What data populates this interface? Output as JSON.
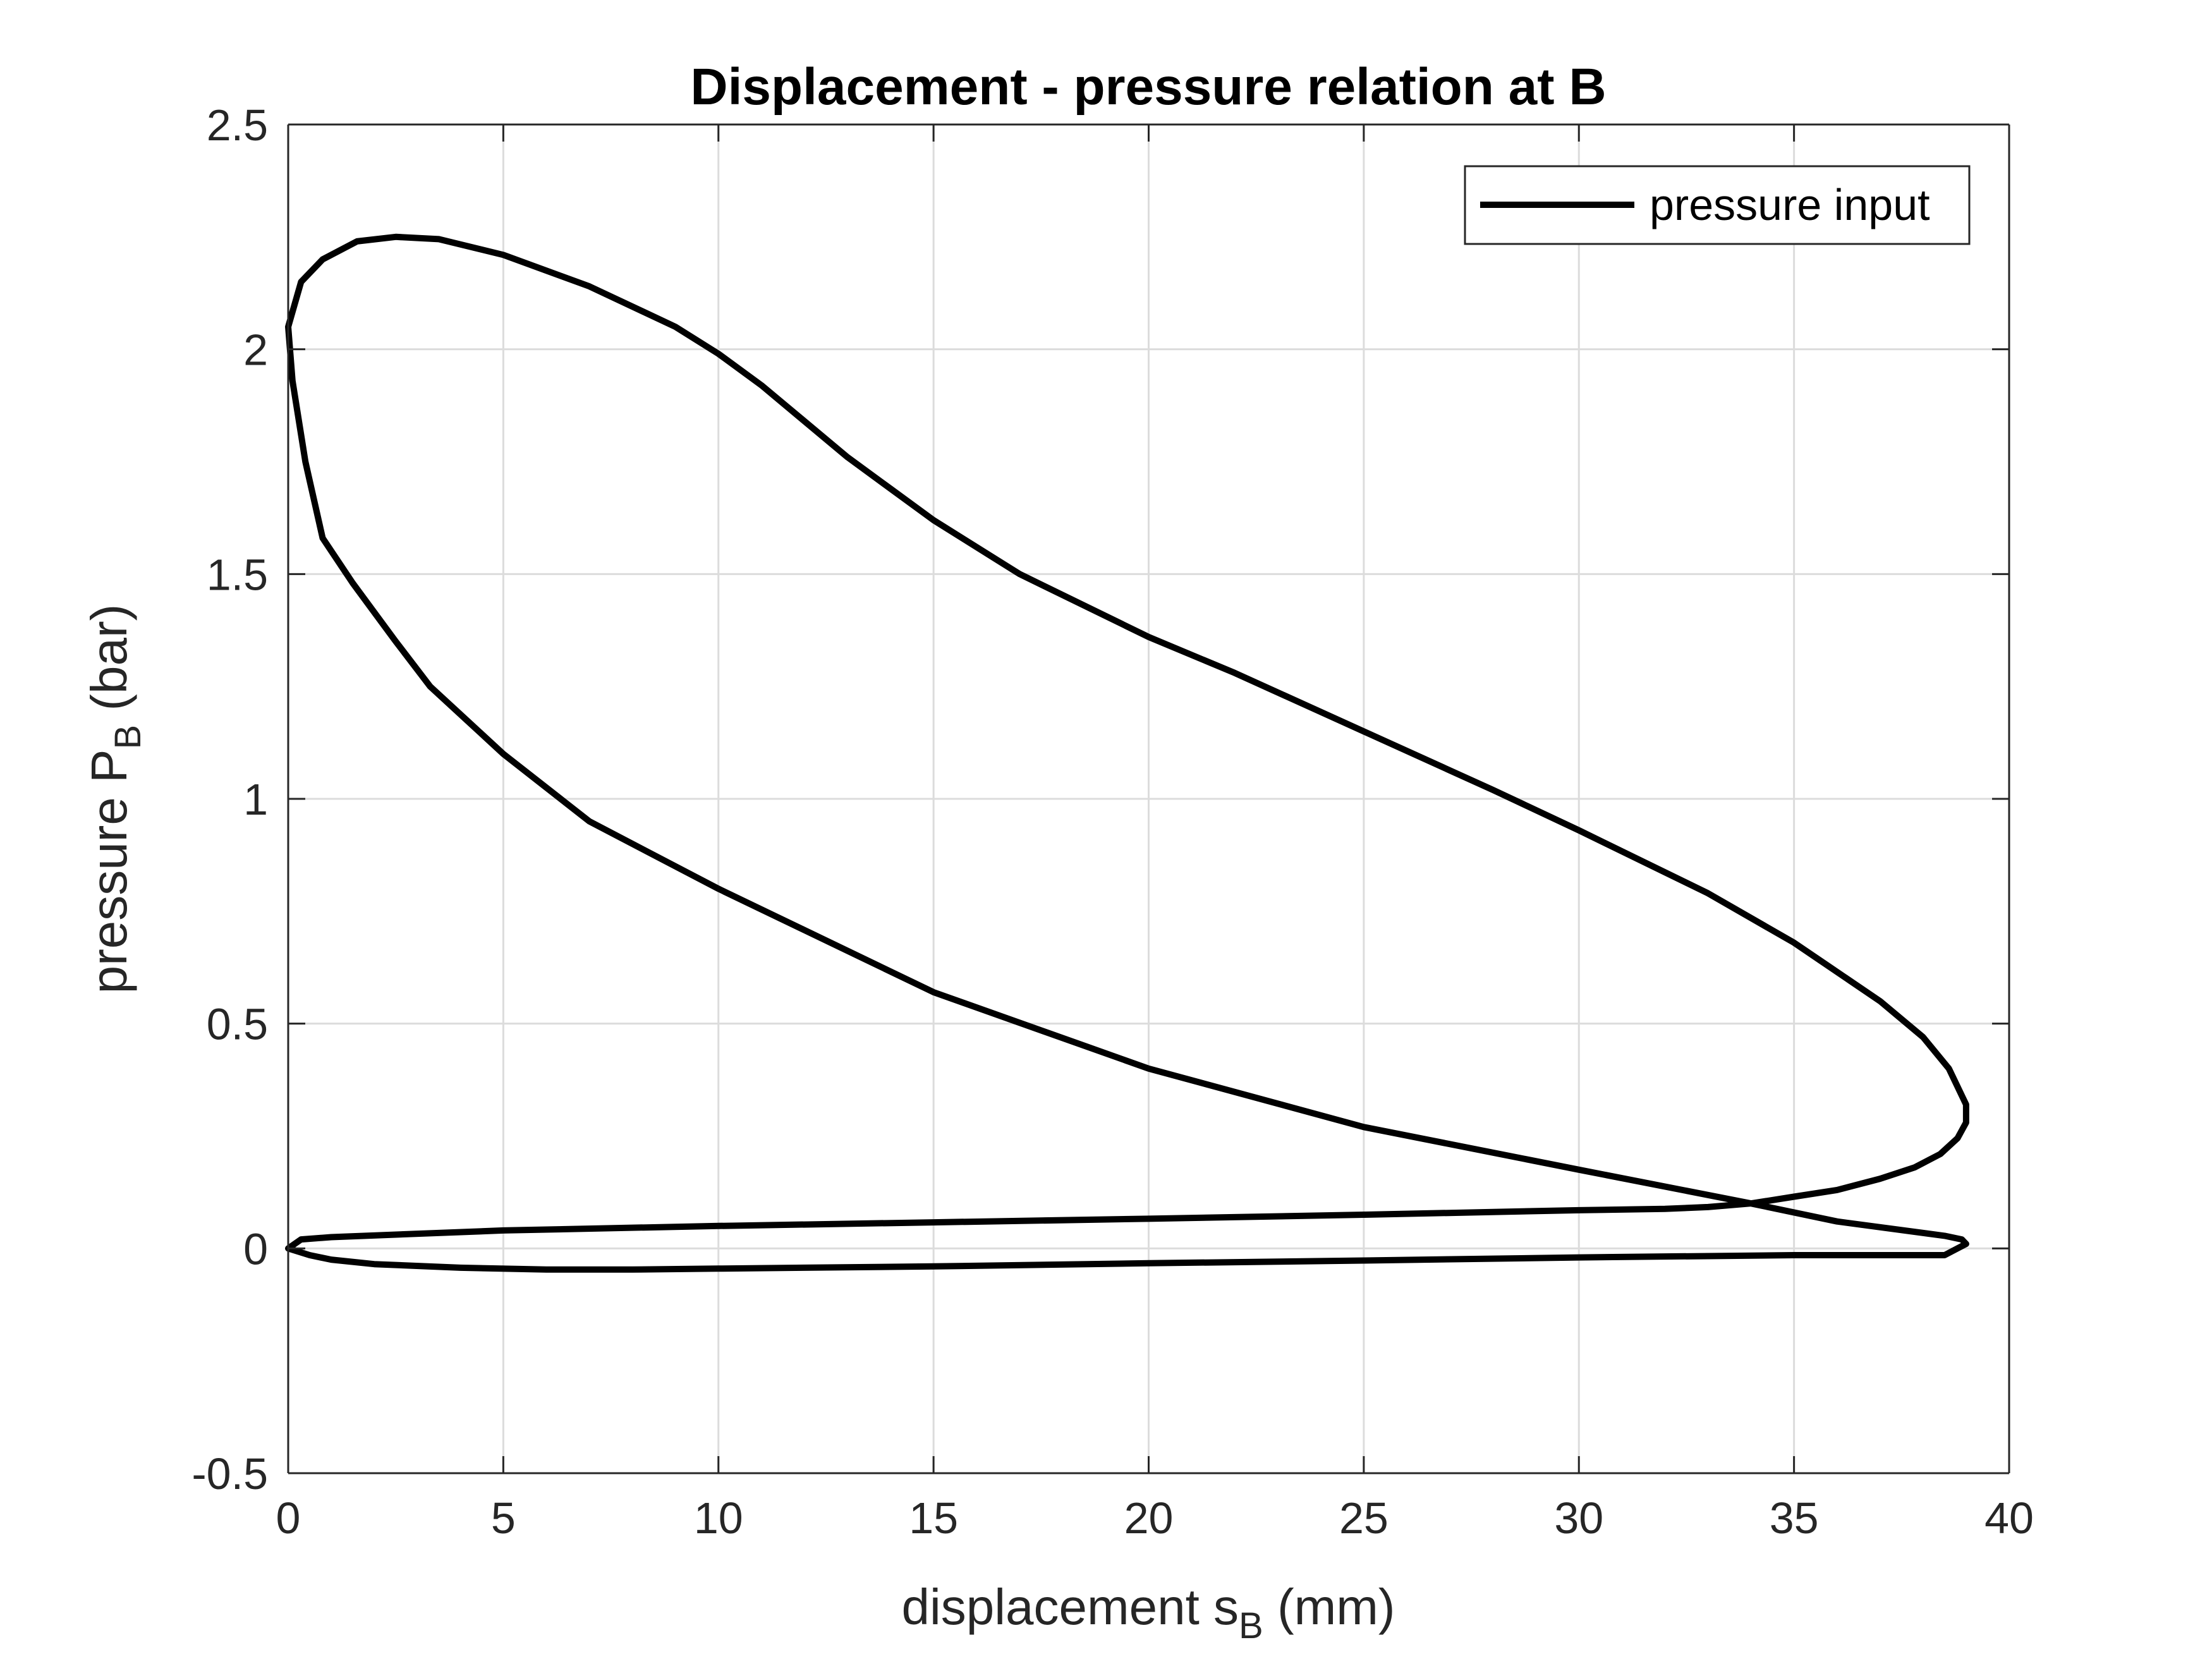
{
  "chart_data": {
    "type": "line",
    "title": "Displacement - pressure relation at B",
    "xlabel": {
      "main": "displacement s",
      "sub": "B",
      "unit": " (mm)"
    },
    "ylabel": {
      "main": "pressure P",
      "sub": "B",
      "unit": " (bar)"
    },
    "xlim": [
      0,
      40
    ],
    "ylim": [
      -0.5,
      2.5
    ],
    "xticks": [
      0,
      5,
      10,
      15,
      20,
      25,
      30,
      35,
      40
    ],
    "yticks": [
      -0.5,
      0,
      0.5,
      1,
      1.5,
      2,
      2.5
    ],
    "xtick_labels": [
      "0",
      "5",
      "10",
      "15",
      "20",
      "25",
      "30",
      "35",
      "40"
    ],
    "ytick_labels": [
      "-0.5",
      "0",
      "0.5",
      "1",
      "1.5",
      "2",
      "2.5"
    ],
    "grid": true,
    "legend": {
      "position": "top-right"
    },
    "series": [
      {
        "name": "pressure input",
        "color": "#000000",
        "x": [
          0,
          0.3,
          0.8,
          1.6,
          2.5,
          3.5,
          5,
          7,
          9,
          10,
          11,
          12,
          13,
          14,
          15,
          17,
          20,
          22,
          25,
          28,
          30,
          33,
          35,
          37,
          38,
          38.6,
          39,
          39,
          38.8,
          38.4,
          37.8,
          37,
          36,
          35,
          34,
          33,
          32,
          30,
          25,
          20,
          15,
          10,
          5,
          1,
          0.3,
          0,
          0.5,
          1,
          2,
          4,
          6,
          8,
          10,
          15,
          20,
          25,
          30,
          35,
          37,
          38.5,
          39,
          38.9,
          38.5,
          36,
          34,
          30,
          25,
          20,
          15,
          10,
          7,
          5,
          3.3,
          2.5,
          1.5,
          0.8,
          0.4,
          0.1,
          0
        ],
        "y": [
          2.05,
          2.15,
          2.2,
          2.24,
          2.25,
          2.245,
          2.21,
          2.14,
          2.05,
          1.99,
          1.92,
          1.84,
          1.76,
          1.69,
          1.62,
          1.5,
          1.36,
          1.28,
          1.15,
          1.02,
          0.93,
          0.79,
          0.68,
          0.55,
          0.47,
          0.4,
          0.32,
          0.28,
          0.245,
          0.21,
          0.18,
          0.155,
          0.13,
          0.115,
          0.1,
          0.092,
          0.088,
          0.085,
          0.075,
          0.066,
          0.058,
          0.05,
          0.04,
          0.025,
          0.02,
          0,
          -0.015,
          -0.025,
          -0.035,
          -0.043,
          -0.047,
          -0.047,
          -0.045,
          -0.04,
          -0.033,
          -0.027,
          -0.02,
          -0.015,
          -0.015,
          -0.015,
          0.01,
          0.02,
          0.028,
          0.06,
          0.1,
          0.175,
          0.27,
          0.4,
          0.57,
          0.8,
          0.95,
          1.1,
          1.25,
          1.35,
          1.48,
          1.58,
          1.75,
          1.93,
          2.05
        ]
      }
    ]
  }
}
